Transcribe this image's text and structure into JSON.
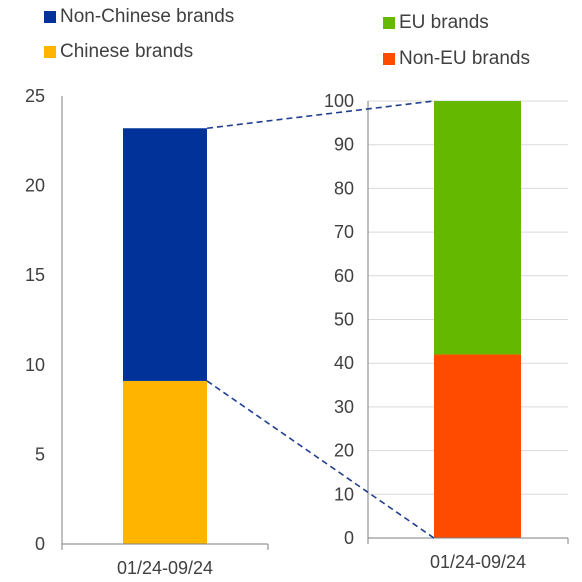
{
  "legend_left": [
    {
      "label": "Non-Chinese brands",
      "color": "#003299"
    },
    {
      "label": "Chinese brands",
      "color": "#FFB400"
    }
  ],
  "legend_right": [
    {
      "label": "EU brands",
      "color": "#65B800"
    },
    {
      "label": "Non-EU brands",
      "color": "#FF4B00"
    }
  ],
  "chart_data": [
    {
      "type": "bar",
      "stacked": true,
      "categories": [
        "01/24-09/24"
      ],
      "series": [
        {
          "name": "Chinese brands",
          "values": [
            9.1
          ],
          "color": "#FFB400"
        },
        {
          "name": "Non-Chinese brands",
          "values": [
            14.1
          ],
          "color": "#003299"
        }
      ],
      "ylim": [
        0,
        25
      ],
      "yticks": [
        0,
        5,
        10,
        15,
        20,
        25
      ],
      "grid": false
    },
    {
      "type": "bar",
      "stacked": true,
      "categories": [
        "01/24-09/24"
      ],
      "series": [
        {
          "name": "Non-EU brands",
          "values": [
            42
          ],
          "color": "#FF4B00"
        },
        {
          "name": "EU brands",
          "values": [
            58
          ],
          "color": "#65B800"
        }
      ],
      "ylim": [
        0,
        100
      ],
      "yticks": [
        0,
        10,
        20,
        30,
        40,
        50,
        60,
        70,
        80,
        90,
        100
      ],
      "grid": true
    }
  ]
}
